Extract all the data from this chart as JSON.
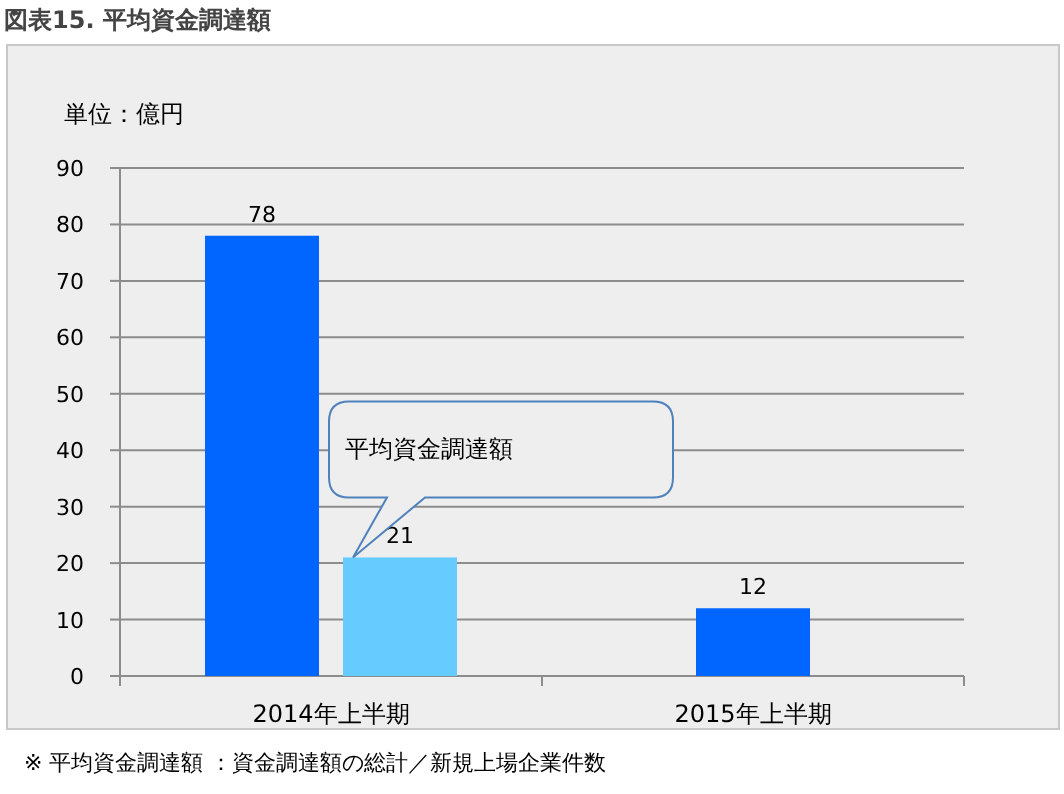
{
  "chart_data": {
    "type": "bar",
    "title": "図表15. 平均資金調達額",
    "ylabel": "単位：億円",
    "categories": [
      "2014年上半期",
      "2015年上半期"
    ],
    "series": [
      {
        "color": "#0066ff",
        "values": [
          78,
          12
        ]
      },
      {
        "color": "#66ccff",
        "values": [
          21,
          null
        ]
      }
    ],
    "ylim": [
      0,
      90
    ],
    "yticks": [
      0,
      10,
      20,
      30,
      40,
      50,
      60,
      70,
      80,
      90
    ],
    "grid": "y",
    "data_labels": true,
    "annotations": [
      "平均資金調達額",
      "※ 平均資金調達額 ：資金調達額の総計／新規上場企業件数"
    ]
  }
}
